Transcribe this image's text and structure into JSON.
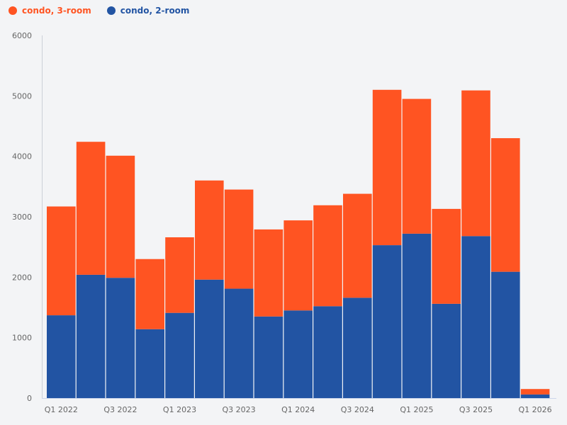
{
  "chart_data": {
    "type": "bar",
    "stacked": true,
    "title": "",
    "xlabel": "",
    "ylabel": "",
    "ylim": [
      0,
      6000
    ],
    "yticks": [
      0,
      1000,
      2000,
      3000,
      4000,
      5000,
      6000
    ],
    "grid": false,
    "legend_placement": "top-left",
    "categories": [
      "Q1 2022",
      "Q2 2022",
      "Q3 2022",
      "Q4 2022",
      "Q1 2023",
      "Q2 2023",
      "Q3 2023",
      "Q4 2023",
      "Q1 2024",
      "Q2 2024",
      "Q3 2024",
      "Q4 2024",
      "Q1 2025",
      "Q2 2025",
      "Q3 2025",
      "Q4 2025",
      "Q1 2026"
    ],
    "shown_tick_labels": [
      "Q1 2022",
      "Q3 2022",
      "Q1 2023",
      "Q3 2023",
      "Q1 2024",
      "Q3 2024",
      "Q1 2025",
      "Q3 2025",
      "Q1 2026"
    ],
    "series": [
      {
        "name": "condo, 2-room",
        "color": "#2254a3",
        "values": [
          1370,
          2040,
          1990,
          1140,
          1410,
          1960,
          1810,
          1350,
          1450,
          1520,
          1660,
          2530,
          2720,
          1560,
          2680,
          2090,
          60
        ]
      },
      {
        "name": "condo, 3-room",
        "color": "#ff5422",
        "values": [
          1800,
          2200,
          2020,
          1160,
          1250,
          1640,
          1640,
          1440,
          1490,
          1670,
          1720,
          2570,
          2230,
          1570,
          2410,
          2210,
          90
        ]
      }
    ],
    "legend_order": [
      "condo, 3-room",
      "condo, 2-room"
    ]
  }
}
